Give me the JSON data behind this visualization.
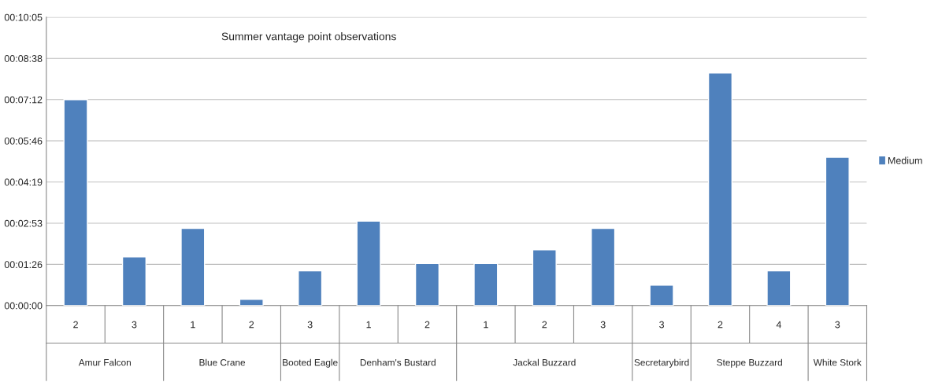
{
  "chart_data": {
    "type": "bar",
    "title": "Summer vantage point observations",
    "categories": [
      "2",
      "3",
      "1",
      "2",
      "3",
      "1",
      "2",
      "1",
      "2",
      "3",
      "3",
      "2",
      "4",
      "3"
    ],
    "annotations": [
      "Amur Falcon",
      "Blue Crane",
      "Booted Eagle",
      "Denham's Bustard",
      "Jackal Buzzard",
      "Secretarybird",
      "Steppe Buzzard",
      "White Stork"
    ],
    "series": [
      {
        "name": "Medium",
        "color": "#4f81bd",
        "values": [
          432,
          102,
          162,
          13,
          73,
          177,
          88,
          88,
          117,
          162,
          43,
          488,
          73,
          311
        ]
      }
    ],
    "ylim": [
      0,
      604.8
    ],
    "yticks": [
      {
        "value": 0,
        "label": "00:00:00"
      },
      {
        "value": 86.4,
        "label": "00:01:26"
      },
      {
        "value": 172.8,
        "label": "00:02:53"
      },
      {
        "value": 259.2,
        "label": "00:04:19"
      },
      {
        "value": 345.6,
        "label": "00:05:46"
      },
      {
        "value": 432,
        "label": "00:07:12"
      },
      {
        "value": 518.4,
        "label": "00:08:38"
      },
      {
        "value": 604.8,
        "label": "00:10:05"
      }
    ],
    "grid": "y",
    "legend": "right"
  }
}
